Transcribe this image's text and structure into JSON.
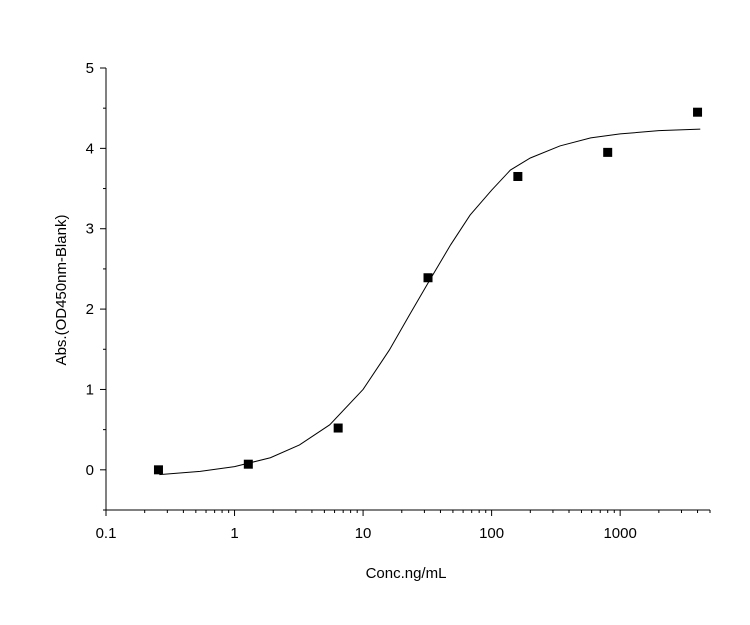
{
  "chart_data": {
    "type": "scatter",
    "xlabel": "Conc.ng/mL",
    "ylabel": "Abs.(OD450nm-Blank)",
    "xscale": "log",
    "xlim": [
      0.1,
      5000
    ],
    "ylim": [
      -0.5,
      5
    ],
    "xticks": [
      0.1,
      1,
      10,
      100,
      1000
    ],
    "xminorticks": [
      0.2,
      0.3,
      0.4,
      0.5,
      0.6,
      0.7,
      0.8,
      0.9,
      2,
      3,
      4,
      5,
      6,
      7,
      8,
      9,
      20,
      30,
      40,
      50,
      60,
      70,
      80,
      90,
      200,
      300,
      400,
      500,
      600,
      700,
      800,
      900,
      2000,
      3000,
      4000,
      5000
    ],
    "yticks": [
      0,
      1,
      2,
      3,
      4,
      5
    ],
    "yminorticks": [
      -0.5,
      0.5,
      1.5,
      2.5,
      3.5,
      4.5
    ],
    "grid": false,
    "series": [
      {
        "style": "marker",
        "color": "#000000",
        "x": [
          0.256,
          1.28,
          6.4,
          32,
          160,
          800,
          4000
        ],
        "values": [
          0,
          0.07,
          0.52,
          2.39,
          3.65,
          3.95,
          4.45
        ]
      },
      {
        "style": "line",
        "color": "#000000",
        "x": [
          0.26,
          0.54,
          1,
          1.9,
          3.2,
          5.5,
          10,
          16,
          23,
          33,
          48,
          68,
          100,
          140,
          200,
          340,
          590,
          1000,
          2000,
          4200
        ],
        "values": [
          -0.06,
          -0.02,
          0.04,
          0.15,
          0.31,
          0.56,
          1.0,
          1.49,
          1.93,
          2.36,
          2.8,
          3.17,
          3.48,
          3.73,
          3.88,
          4.03,
          4.13,
          4.18,
          4.22,
          4.24
        ]
      }
    ]
  }
}
